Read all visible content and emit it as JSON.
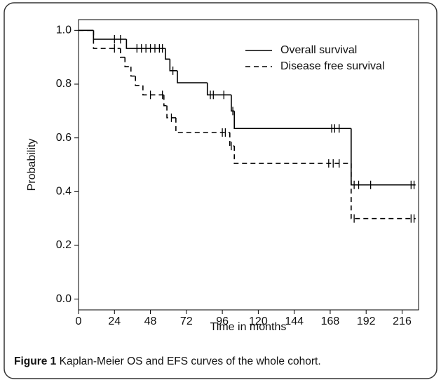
{
  "chart_data": {
    "type": "step",
    "x_label": "Time in months",
    "y_label": "Probability",
    "xlim": [
      0,
      227
    ],
    "ylim": [
      -0.04,
      1.04
    ],
    "xticks": [
      0,
      24,
      48,
      72,
      96,
      120,
      144,
      168,
      192,
      216
    ],
    "yticks": [
      {
        "value": 0,
        "label": "0.0"
      },
      0.2,
      0.4,
      0.6,
      0.8,
      {
        "value": 1,
        "label": "1.0"
      }
    ],
    "legend": "top-right",
    "series": [
      {
        "name": "Overall survival",
        "color": "#000000",
        "line_style": "solid",
        "x": [
          0,
          10,
          32,
          58,
          61,
          66,
          86,
          102,
          104,
          182,
          225
        ],
        "values": [
          1,
          0.967,
          0.933,
          0.893,
          0.85,
          0.805,
          0.76,
          0.7,
          0.635,
          0.425,
          0.425
        ],
        "censor_x": [
          24,
          28,
          39,
          42,
          45,
          48,
          51,
          54,
          56,
          63,
          88,
          90,
          97,
          103,
          169,
          171,
          174,
          184,
          187,
          195,
          222,
          224
        ],
        "censor_values": [
          0.967,
          0.967,
          0.933,
          0.933,
          0.933,
          0.933,
          0.933,
          0.933,
          0.933,
          0.85,
          0.76,
          0.76,
          0.76,
          0.7,
          0.635,
          0.635,
          0.635,
          0.425,
          0.425,
          0.425,
          0.425,
          0.425
        ]
      },
      {
        "name": "Disease free survival",
        "color": "#000000",
        "line_style": "dashed",
        "x": [
          0,
          10,
          28,
          31,
          35,
          38,
          43,
          57,
          59,
          65,
          101,
          104,
          182,
          225
        ],
        "values": [
          1,
          0.933,
          0.9,
          0.865,
          0.83,
          0.795,
          0.76,
          0.72,
          0.675,
          0.62,
          0.57,
          0.505,
          0.3,
          0.3
        ],
        "censor_x": [
          24,
          48,
          56,
          62,
          96,
          98,
          102,
          167,
          170,
          174,
          184,
          222,
          224
        ],
        "censor_values": [
          0.933,
          0.76,
          0.76,
          0.675,
          0.62,
          0.62,
          0.57,
          0.505,
          0.505,
          0.505,
          0.3,
          0.3,
          0.3
        ]
      }
    ]
  },
  "caption": {
    "label": "Figure 1",
    "text": "Kaplan-Meier OS and EFS curves of the whole cohort."
  }
}
